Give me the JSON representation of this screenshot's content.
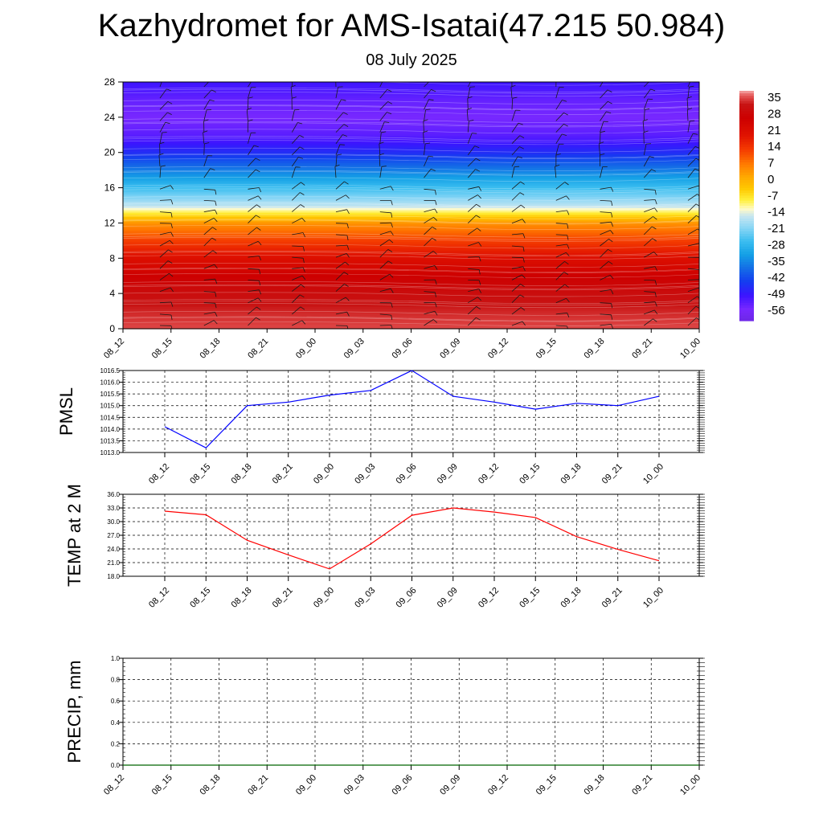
{
  "title": "Kazhydromet for AMS-Isatai(47.215 50.984)",
  "subtitle": "08 July 2025",
  "time_labels": [
    "08_12",
    "08_15",
    "08_18",
    "08_21",
    "09_00",
    "09_03",
    "09_06",
    "09_09",
    "09_12",
    "09_15",
    "09_18",
    "09_21",
    "10_00"
  ],
  "chart_data": [
    {
      "type": "heatmap",
      "name": "temperature-wind-cross-section",
      "x": [
        "08_12",
        "08_15",
        "08_18",
        "08_21",
        "09_00",
        "09_03",
        "09_06",
        "09_09",
        "09_12",
        "09_15",
        "09_18",
        "09_21",
        "10_00"
      ],
      "y_ticks": [
        0,
        4,
        8,
        12,
        16,
        20,
        24,
        28
      ],
      "ylim": [
        0,
        28
      ],
      "colorbar": {
        "labels": [
          35,
          28,
          21,
          14,
          7,
          0,
          -7,
          -14,
          -21,
          -28,
          -35,
          -42,
          -49,
          -56
        ],
        "range": [
          -63,
          38
        ]
      },
      "z_levels": [
        0,
        2,
        4,
        6,
        8,
        10,
        12,
        13,
        14,
        16,
        18,
        20,
        22,
        24,
        26,
        28
      ],
      "z_values": [
        35,
        33,
        30,
        26,
        20,
        12,
        3,
        -8,
        -18,
        -28,
        -38,
        -48,
        -55,
        -58,
        -56,
        -52
      ],
      "wind_barbs": true
    },
    {
      "type": "line",
      "name": "pmsl",
      "ylabel": "PMSL",
      "x": [
        "08_12",
        "08_15",
        "08_18",
        "08_21",
        "09_00",
        "09_03",
        "09_06",
        "09_09",
        "09_12",
        "09_15",
        "09_18",
        "09_21",
        "10_00"
      ],
      "y": [
        1014.1,
        1013.2,
        1015.0,
        1015.15,
        1015.45,
        1015.65,
        1016.5,
        1015.4,
        1015.15,
        1014.85,
        1015.1,
        1015.0,
        1015.4
      ],
      "ylim": [
        1013.0,
        1016.5
      ],
      "y_ticks": [
        "1013.0",
        "1013.5",
        "1014.0",
        "1014.5",
        "1015.0",
        "1015.5",
        "1016.0",
        "1016.5"
      ],
      "color": "#0000ff",
      "grid": true
    },
    {
      "type": "line",
      "name": "temp-2m",
      "ylabel": "TEMP at 2 M",
      "x": [
        "08_12",
        "08_15",
        "08_18",
        "08_21",
        "09_00",
        "09_03",
        "09_06",
        "09_09",
        "09_12",
        "09_15",
        "09_18",
        "09_21",
        "10_00"
      ],
      "y": [
        32.3,
        31.5,
        25.9,
        22.7,
        19.6,
        25.1,
        31.4,
        33.0,
        32.1,
        30.9,
        26.7,
        23.9,
        21.4
      ],
      "ylim": [
        18.0,
        36.0
      ],
      "y_ticks": [
        "18.0",
        "21.0",
        "24.0",
        "27.0",
        "30.0",
        "33.0",
        "36.0"
      ],
      "color": "#ff0000",
      "grid": true
    },
    {
      "type": "line",
      "name": "precip",
      "ylabel": "PRECIP, mm",
      "x": [
        "08_12",
        "08_15",
        "08_18",
        "08_21",
        "09_00",
        "09_03",
        "09_06",
        "09_09",
        "09_12",
        "09_15",
        "09_18",
        "09_21",
        "10_00"
      ],
      "y": [
        0,
        0,
        0,
        0,
        0,
        0,
        0,
        0,
        0,
        0,
        0,
        0,
        0
      ],
      "ylim": [
        0.0,
        1.0
      ],
      "y_ticks": [
        "0.0",
        "0.2",
        "0.4",
        "0.6",
        "0.8",
        "1.0"
      ],
      "color": "#006400",
      "grid": true
    }
  ]
}
